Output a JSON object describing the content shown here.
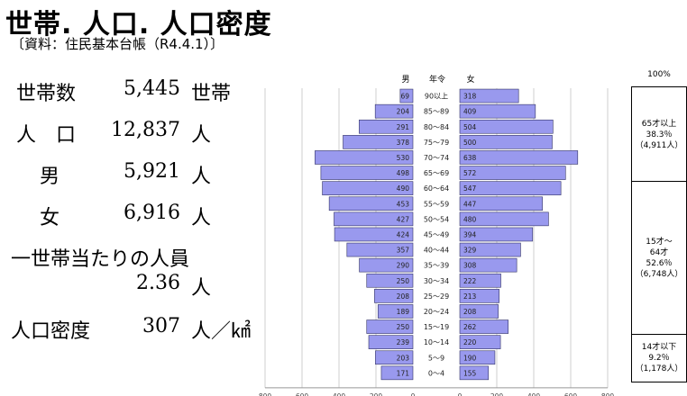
{
  "title": "世帯. 人口. 人口密度",
  "source": "〔資料：住民基本台帳（R4.4.1）〕",
  "stats": {
    "households": {
      "label": "世帯数",
      "value": "5,445",
      "unit": "世帯"
    },
    "population": {
      "label": "人　口",
      "value": "12,837",
      "unit": "人"
    },
    "male": {
      "label": "男",
      "value": "5,921",
      "unit": "人"
    },
    "female": {
      "label": "女",
      "value": "6,916",
      "unit": "人"
    },
    "per_household": {
      "label": "一世帯当たりの人員",
      "value": "2.36",
      "unit": "人"
    },
    "density": {
      "label": "人口密度",
      "value": "307",
      "unit": "人／㎢"
    }
  },
  "age_groups": {
    "header": "100%",
    "old": {
      "label": "65才以上",
      "percent": "38.3％",
      "count": "（4,911人）"
    },
    "working_line1": "15才～",
    "working_line2": "64才",
    "working": {
      "percent": "52.6％",
      "count": "（6,748人）"
    },
    "young": {
      "label": "14才以下",
      "percent": "9.2％",
      "count": "（1,178人）"
    }
  },
  "chart_data": {
    "type": "bar",
    "header_male": "男",
    "header_age": "年令",
    "header_female": "女",
    "categories": [
      "90以上",
      "85～89",
      "80～84",
      "75～79",
      "70～74",
      "65～69",
      "60～64",
      "55～59",
      "50～54",
      "45～49",
      "40～44",
      "35～39",
      "30～34",
      "25～29",
      "20～24",
      "15～19",
      "10～14",
      "5～9",
      "0～4"
    ],
    "series": [
      {
        "name": "男",
        "values": [
          69,
          204,
          291,
          378,
          530,
          498,
          490,
          453,
          427,
          424,
          357,
          290,
          250,
          208,
          189,
          250,
          239,
          203,
          171
        ]
      },
      {
        "name": "女",
        "values": [
          318,
          409,
          504,
          500,
          638,
          572,
          547,
          447,
          480,
          394,
          329,
          308,
          222,
          213,
          208,
          262,
          220,
          190,
          155
        ]
      }
    ],
    "xlim": [
      0,
      800
    ],
    "xticks": [
      "800",
      "600",
      "400",
      "200",
      "0",
      "0",
      "200",
      "400",
      "600",
      "800"
    ],
    "bar_color": "#9999ee",
    "bar_border": "#333366"
  }
}
